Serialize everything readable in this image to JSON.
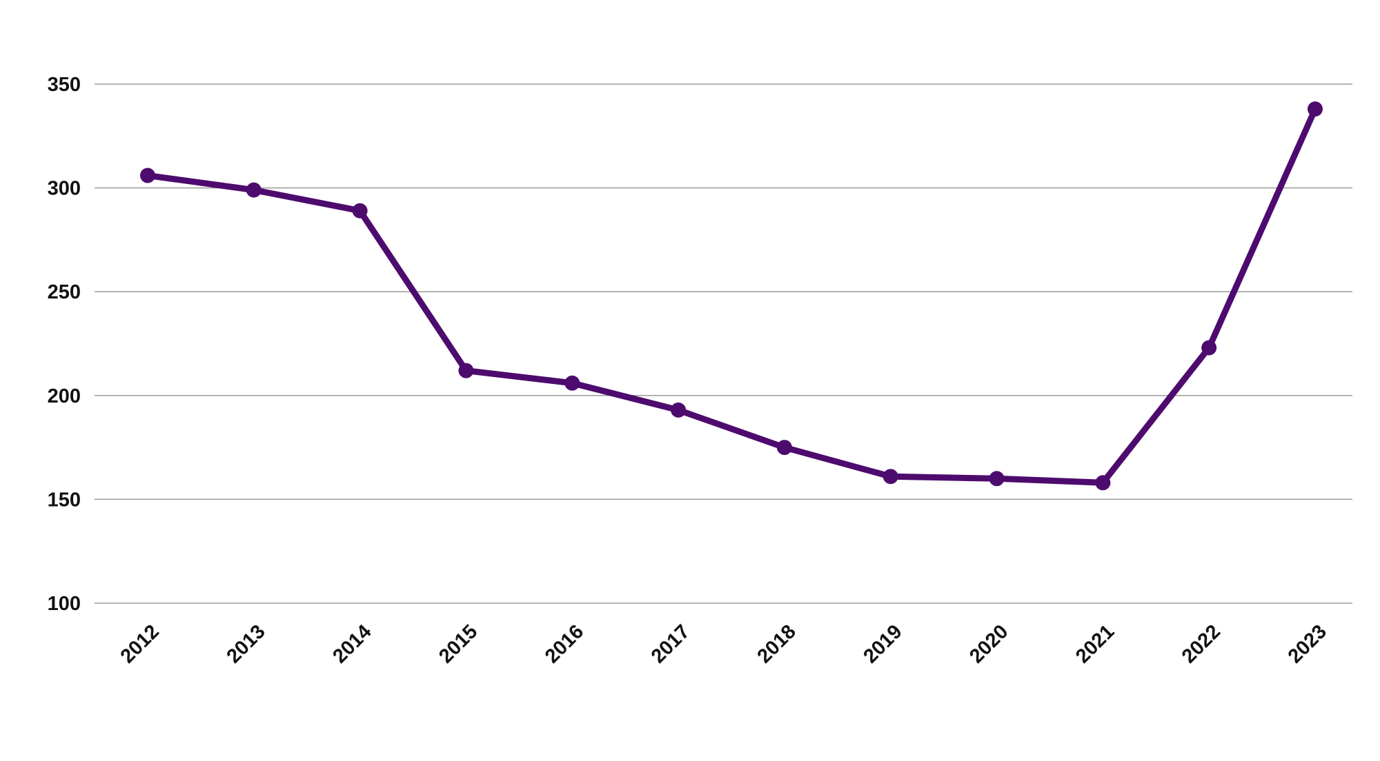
{
  "chart_data": {
    "type": "line",
    "title": "",
    "xlabel": "",
    "ylabel": "",
    "categories": [
      "2012",
      "2013",
      "2014",
      "2015",
      "2016",
      "2017",
      "2018",
      "2019",
      "2020",
      "2021",
      "2022",
      "2023"
    ],
    "series": [
      {
        "values": [
          306,
          299,
          289,
          212,
          206,
          193,
          175,
          161,
          160,
          158,
          223,
          338
        ],
        "color": "#4e0b6e"
      }
    ],
    "ylim": [
      100,
      350
    ],
    "yticks": [
      "100",
      "150",
      "200",
      "250",
      "300",
      "350"
    ],
    "grid": true,
    "legend": "none",
    "colors": {
      "line": "#4e0b6e",
      "grid": "#9a9a9a",
      "text": "#111111"
    }
  }
}
